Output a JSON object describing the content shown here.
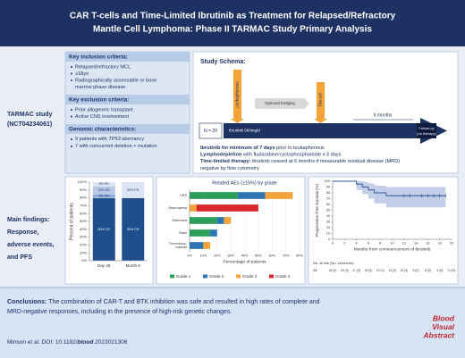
{
  "header": {
    "title_lines": [
      "CAR T-cells and Time-Limited Ibrutinib as Treatment for Relapsed/Refractory",
      "Mantle Cell Lymphoma: Phase II TARMAC Study Primary Analysis"
    ]
  },
  "left_labels": {
    "study": [
      "TARMAC study",
      "(NCT04234061)"
    ],
    "findings": [
      "Main findings:",
      "Response,",
      "adverse events,",
      "and PFS"
    ]
  },
  "criteria": [
    {
      "heading": "Key inclusion criteria:",
      "items": [
        [
          "Relapsed/refractory MCL"
        ],
        [
          "≥18yo"
        ],
        [
          "Radiographically assessable or bone",
          "marrow phase disease"
        ]
      ]
    },
    {
      "heading": "Key exclusion criteria:",
      "items": [
        [
          "Prior allogeneic transplant"
        ],
        [
          "Active CNS involvement"
        ]
      ]
    },
    {
      "heading": "Genomic characteristics:",
      "items": [
        [
          "9 patients with ",
          "TP53",
          " aberrancy"
        ],
        [
          "7 with concurrent deletion + mutation"
        ]
      ]
    }
  ],
  "schema": {
    "heading": "Study Schema:",
    "n": "N = 20",
    "leukapheresis": "Leukapheresis",
    "bridging": "Optional bridging",
    "tisacel": "Tisa-cel",
    "ibrutinib": "Ibrutinib 560mg/d",
    "duration": "6 months",
    "followup": [
      "Follow-up",
      "(no therapy)"
    ],
    "notes": [
      {
        "bold": "Ibrutinib for minimum of 7 days",
        "rest": " prior to leukapheresis"
      },
      {
        "bold": "Lymphodepletion",
        "rest": " with fludarabine/cyclophosphamide x 3 days"
      },
      {
        "bold": "Time-limited therapy:",
        "rest": " ibrutinib ceased at 6 months if measurable residual disease (MRD)"
      }
    ],
    "notes_cont": "negative by flow cytometry"
  },
  "response_chart": {
    "type": "bar",
    "ylabel": "Percent of patients",
    "categories": [
      "Day 28",
      "Month 6"
    ],
    "series": [
      {
        "color": "#1f4e8c",
        "values": [
          80,
          80
        ],
        "value_labels": [
          "80% CR",
          "80% CR"
        ]
      },
      {
        "color": "#8fa9d4",
        "values": [
          5,
          0
        ],
        "value_labels": [
          "5% PR",
          null
        ]
      },
      {
        "color": "#b8c9e6",
        "values": [
          10,
          0
        ],
        "value_labels": [
          "10% SD",
          null
        ]
      },
      {
        "color": "#dbe4f3",
        "values": [
          5,
          20
        ],
        "value_labels": [
          "5% PD",
          "20% PD"
        ]
      }
    ],
    "ylim": [
      0,
      100
    ],
    "yticks": [
      {
        "value": 0,
        "label": "0%"
      },
      {
        "value": 10,
        "label": "10%"
      },
      {
        "value": 20,
        "label": "20%"
      },
      {
        "value": 30,
        "label": "30%"
      },
      {
        "value": 40,
        "label": "40%"
      },
      {
        "value": 50,
        "label": "50%"
      },
      {
        "value": 60,
        "label": "60%"
      },
      {
        "value": 70,
        "label": "70%"
      },
      {
        "value": 80,
        "label": "80%"
      },
      {
        "value": 90,
        "label": "90%"
      },
      {
        "value": 100,
        "label": "100%"
      }
    ]
  },
  "ae_chart": {
    "type": "bar",
    "title": "Related AEs (≥15%) by grade",
    "xlabel": "Percentage of patients",
    "categories": [
      "CRS",
      "Neutropenia",
      "Diarrhoea",
      "Rash",
      [
        "Thrombocy-",
        "topenia"
      ]
    ],
    "series": [
      {
        "name": "Grade 1",
        "color": "#2ca05a",
        "values": [
          35,
          0,
          20,
          15,
          0
        ]
      },
      {
        "name": "Grade 2",
        "color": "#2e75b6",
        "values": [
          20,
          0,
          5,
          5,
          10
        ]
      },
      {
        "name": "Grade 3",
        "color": "#f4a23a",
        "values": [
          20,
          5,
          5,
          0,
          5
        ]
      },
      {
        "name": "Grade 4",
        "color": "#d9262c",
        "values": [
          0,
          45,
          0,
          0,
          0
        ]
      }
    ],
    "xlim": [
      0,
      80
    ],
    "xticks": [
      {
        "value": 0,
        "label": "0%"
      },
      {
        "value": 10,
        "label": "10%"
      },
      {
        "value": 20,
        "label": "20%"
      },
      {
        "value": 30,
        "label": "30%"
      },
      {
        "value": 40,
        "label": "40%"
      },
      {
        "value": 50,
        "label": "50%"
      },
      {
        "value": 60,
        "label": "60%"
      },
      {
        "value": 70,
        "label": "70%"
      },
      {
        "value": 80,
        "label": "80%"
      }
    ]
  },
  "pfs_chart": {
    "type": "line",
    "ylabel": "Progression-free survival (%)",
    "xlabel": "Months from commencement of ibrutinib",
    "x": [
      0,
      4,
      4,
      5,
      5,
      6,
      6,
      7,
      7,
      9,
      9,
      19
    ],
    "series": [
      {
        "color": "#2f5597",
        "band_color": "#b4c3e3",
        "values": [
          100,
          100,
          95,
          95,
          90,
          90,
          85,
          85,
          80,
          80,
          75,
          75
        ],
        "ci_upper": [
          100,
          100,
          100,
          100,
          100,
          98,
          97,
          95,
          93,
          92,
          90,
          90
        ],
        "ci_lower": [
          100,
          100,
          85,
          85,
          78,
          78,
          70,
          70,
          62,
          62,
          55,
          55
        ]
      }
    ],
    "censored": {
      "x": [
        12,
        13,
        15,
        16,
        17,
        18,
        19
      ],
      "y": [
        75,
        75,
        75,
        75,
        75,
        75,
        75
      ]
    },
    "xlim": [
      0,
      20
    ],
    "xticks": [
      0,
      2,
      4,
      6,
      8,
      10,
      12,
      14,
      16,
      18,
      20
    ],
    "ylim": [
      0,
      100
    ],
    "yticks": [
      0,
      10,
      20,
      30,
      40,
      50,
      60,
      70,
      80,
      90,
      100
    ],
    "risk_table": {
      "title": "No. at risk (No. censored)",
      "group": "All",
      "counts": [
        "18 (0)",
        "18 (0)",
        "17 (0)",
        "15 (0)",
        "13 (0)",
        "13 (0)",
        "13 (0)",
        "5 (0)",
        "5 (0)",
        "4 (0)",
        "0 (13)"
      ]
    }
  },
  "conclusion": {
    "label": "Conclusions:",
    "lines": [
      " The combination of CAR-T and BTK inhibition was safe and resulted in high rates of complete and",
      "MRD-negative responses, including in the presence of high-risk genetic changes."
    ]
  },
  "citation": {
    "pre": "Minson et al. DOI: 10.1182/",
    "italic": "blood",
    "post": ".2023021306"
  },
  "logo": [
    "Blood",
    "Visual",
    "Abstract"
  ]
}
